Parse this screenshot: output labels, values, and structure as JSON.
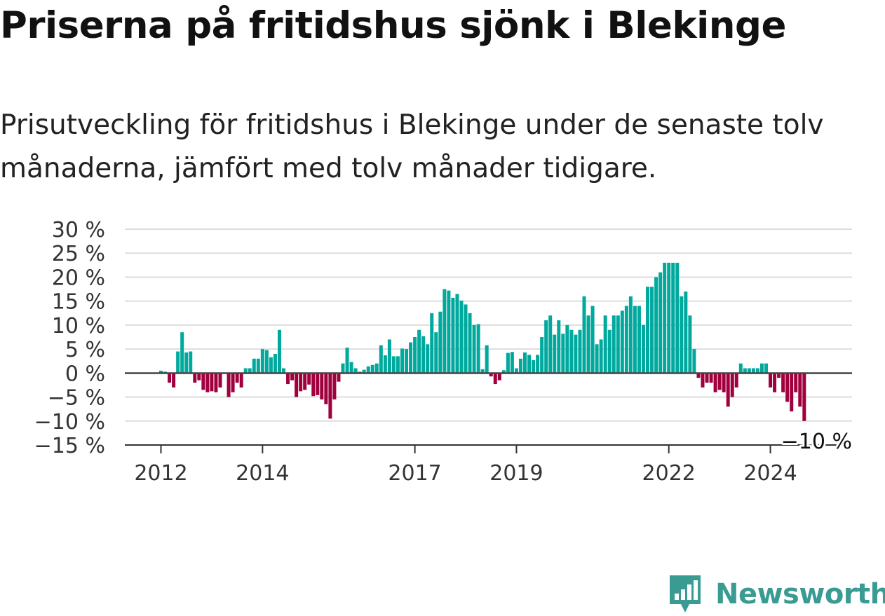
{
  "title": "Priserna på fritidshus sjönk i Blekinge",
  "subtitle": "Prisutveckling för fritidshus i Blekinge under de senaste tolv månaderna, jämfört med tolv månader tidigare.",
  "logo": {
    "text": "Newsworthy",
    "icon": "bar-chart-badge-icon"
  },
  "colors": {
    "positive": "#00a99d",
    "negative": "#a0003e",
    "grid": "#dddddd",
    "zero_line": "#444444",
    "logo": "#3a9b93"
  },
  "chart_data": {
    "type": "bar",
    "ylim": [
      -15,
      30
    ],
    "yticks": [
      {
        "value": 30,
        "label": "30 %"
      },
      {
        "value": 25,
        "label": "25 %"
      },
      {
        "value": 20,
        "label": "20 %"
      },
      {
        "value": 15,
        "label": "15 %"
      },
      {
        "value": 10,
        "label": "10 %"
      },
      {
        "value": 5,
        "label": "5 %"
      },
      {
        "value": 0,
        "label": "0 %"
      },
      {
        "value": -5,
        "label": "−5 %"
      },
      {
        "value": -10,
        "label": "−10 %"
      },
      {
        "value": -15,
        "label": "−15 %"
      }
    ],
    "xticks": [
      {
        "index": 0,
        "label": "2012"
      },
      {
        "index": 24,
        "label": "2014"
      },
      {
        "index": 60,
        "label": "2017"
      },
      {
        "index": 84,
        "label": "2019"
      },
      {
        "index": 120,
        "label": "2022"
      },
      {
        "index": 144,
        "label": "2024"
      }
    ],
    "start": "2012-01",
    "values": [
      0.5,
      0.3,
      -2,
      -3,
      4.5,
      8.5,
      4.3,
      4.5,
      -2,
      -1.5,
      -3.5,
      -4,
      -3.8,
      -4,
      -3,
      0,
      -5,
      -4,
      -2,
      -3,
      1,
      1,
      3,
      3,
      5,
      4.8,
      3.3,
      4,
      9,
      1,
      -2.3,
      -1.5,
      -5,
      -3.8,
      -3.5,
      -2.4,
      -4.8,
      -4.6,
      -5.5,
      -6.5,
      -9.5,
      -5.5,
      -1.8,
      2,
      5.3,
      2.3,
      1,
      0.3,
      0.7,
      1.4,
      1.7,
      2,
      5.8,
      3.7,
      7,
      3.5,
      3.5,
      5.1,
      5,
      6.4,
      7.5,
      9,
      7.7,
      6,
      12.5,
      8.5,
      12.8,
      17.5,
      17.2,
      15.7,
      16.5,
      15.1,
      14.3,
      12.5,
      10,
      10.2,
      0.8,
      5.8,
      -0.7,
      -2.3,
      -1.5,
      0.6,
      4.2,
      4.4,
      1,
      3,
      4.3,
      3.8,
      2.7,
      3.8,
      7.5,
      11,
      12,
      8,
      11,
      8.2,
      10,
      9,
      8,
      9,
      16,
      12,
      14,
      6,
      7,
      12,
      9,
      12,
      12,
      13,
      14,
      16,
      14,
      14,
      10,
      18,
      18,
      20,
      21,
      23,
      23,
      23,
      23,
      16,
      17,
      12,
      5,
      -1,
      -3,
      -2,
      -2,
      -4,
      -3.5,
      -4,
      -7,
      -5,
      -3,
      2,
      1,
      1,
      1,
      1,
      2,
      2,
      -3,
      -4,
      -1,
      -4,
      -6,
      -8,
      -4,
      -7,
      -10
    ],
    "annotation": {
      "label": "−10 %",
      "index": 155
    }
  }
}
